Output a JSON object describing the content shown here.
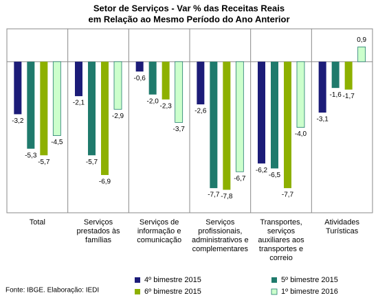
{
  "chart_data": {
    "type": "bar",
    "title": [
      "Setor de Serviços - Var % das Receitas Reais",
      "em Relação ao Mesmo Período do Ano Anterior"
    ],
    "categories": [
      [
        "Total"
      ],
      [
        "Serviços",
        "prestados às",
        "famílias"
      ],
      [
        "Serviços de",
        "informação e",
        "comunicação"
      ],
      [
        "Serviços",
        "profissionais,",
        "administrativos e",
        "complementares"
      ],
      [
        "Transportes,",
        "serviços",
        "auxiliares aos",
        "transportes e",
        "correio"
      ],
      [
        "Atividades",
        "Turísticas"
      ]
    ],
    "series": [
      {
        "name": "4º bimestre 2015",
        "color": "#1c1c78",
        "values": [
          -3.2,
          -2.1,
          -0.6,
          -2.6,
          -6.2,
          -3.1
        ],
        "value_labels": [
          "-3,2",
          "-2,1",
          "-0,6",
          "-2,6",
          "-6,2",
          "-3,1"
        ]
      },
      {
        "name": "5º bimestre 2015",
        "color": "#1f7a6c",
        "values": [
          -5.3,
          -5.7,
          -2.0,
          -7.7,
          -6.5,
          -1.6
        ],
        "value_labels": [
          "-5,3",
          "-5,7",
          "-2,0",
          "-7,7",
          "-6,5",
          "-1,6"
        ]
      },
      {
        "name": "6º bimestre 2015",
        "color": "#8db000",
        "values": [
          -5.7,
          -6.9,
          -2.3,
          -7.8,
          -7.7,
          -1.7
        ],
        "value_labels": [
          "-5,7",
          "-6,9",
          "-2,3",
          "-7,8",
          "-7,7",
          "-1,7"
        ]
      },
      {
        "name": "1º bimestre 2016",
        "color": "#ccffcc",
        "values": [
          -4.5,
          -2.9,
          -3.7,
          -6.7,
          -4.0,
          0.9
        ],
        "value_labels": [
          "-4,5",
          "-2,9",
          "-3,7",
          "-6,7",
          "-4,0",
          "0,9"
        ]
      }
    ],
    "ylim": [
      -9.2,
      2
    ],
    "legend": "bottom",
    "source": "Fonte: IBGE. Elaboração: IEDI"
  }
}
